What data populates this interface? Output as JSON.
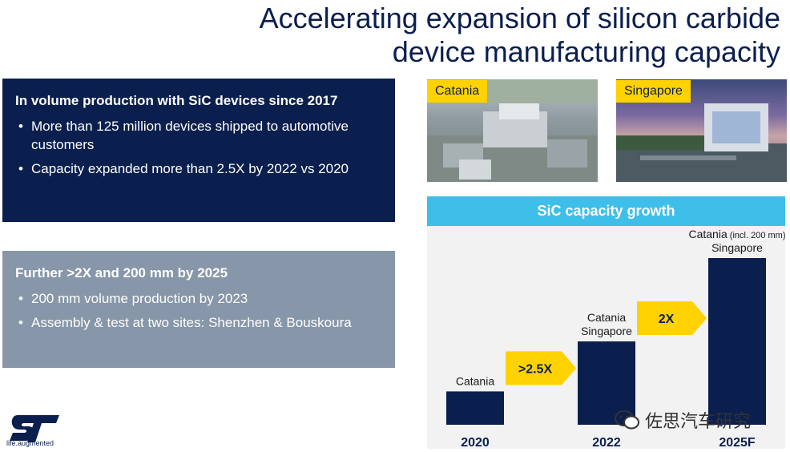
{
  "title": {
    "line1": "Accelerating expansion of silicon carbide",
    "line2": "device manufacturing capacity"
  },
  "box1": {
    "heading": "In volume production with SiC devices since 2017",
    "bullets": [
      "More than 125 million devices shipped to automotive customers",
      "Capacity expanded more than 2.5X by 2022 vs 2020"
    ]
  },
  "box2": {
    "heading": "Further >2X and 200 mm by 2025",
    "bullets": [
      "200 mm volume production  by 2023",
      "Assembly & test at two sites: Shenzhen & Bouskoura"
    ]
  },
  "photos": [
    {
      "label": "Catania"
    },
    {
      "label": "Singapore"
    }
  ],
  "logo": {
    "tagline": "life.augmented"
  },
  "watermark": {
    "text": "佐思汽车研究"
  },
  "colors": {
    "navy": "#0b1f4e",
    "slate": "#8796a8",
    "cyan": "#3dbfe9",
    "yellow": "#ffd200",
    "panel": "#f2f2f2"
  },
  "chart_data": {
    "type": "bar",
    "title": "SiC capacity growth",
    "categories": [
      "2020",
      "2022",
      "2025F"
    ],
    "values": [
      1,
      2.5,
      5
    ],
    "bar_labels": [
      [
        "Catania"
      ],
      [
        "Catania",
        "Singapore"
      ],
      [
        "Catania (incl. 200 mm)",
        "Singapore"
      ]
    ],
    "growth_arrows": [
      {
        "label": ">2.5X",
        "from": "2020",
        "to": "2022"
      },
      {
        "label": "2X",
        "from": "2022",
        "to": "2025F"
      }
    ],
    "xlabel": "",
    "ylabel": "",
    "ylim": [
      0,
      5
    ]
  }
}
